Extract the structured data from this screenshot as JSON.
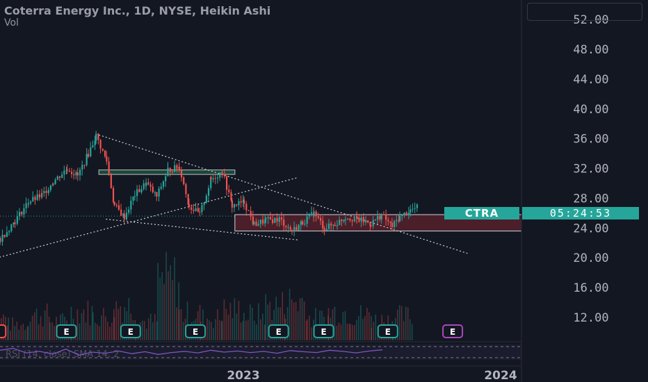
{
  "header": {
    "title": "Coterra Energy Inc., 1D, NYSE, Heikin Ashi",
    "vol_label": "Vol"
  },
  "price_tag": {
    "symbol": "CTRA",
    "countdown": "05:24:53"
  },
  "rsi_label": "RSI (14, close) SMA 14, 2",
  "colors": {
    "background": "#131722",
    "up": "#26a69a",
    "down": "#ef5350",
    "axis_text": "#b2b5be",
    "rsi_line": "#7e57c2",
    "zone_fill": "#4a1f2a"
  },
  "chart_data": {
    "type": "candlestick",
    "title": "Coterra Energy Inc., 1D, NYSE, Heikin Ashi",
    "y_axis": {
      "ticks": [
        "52.00",
        "48.00",
        "44.00",
        "40.00",
        "36.00",
        "32.00",
        "28.00",
        "24.00",
        "20.00",
        "16.00",
        "12.00"
      ],
      "range": [
        9,
        53
      ],
      "position": "right"
    },
    "x_axis": {
      "ticks": [
        "2023",
        "2024"
      ],
      "range": [
        "2022-01",
        "2024-01"
      ]
    },
    "last_price": 25.6,
    "price_path": [
      [
        "2022-01-01",
        19.6
      ],
      [
        "2022-01-20",
        22.5
      ],
      [
        "2022-02-10",
        25.0
      ],
      [
        "2022-03-01",
        27.5
      ],
      [
        "2022-03-20",
        28.4
      ],
      [
        "2022-04-05",
        30.2
      ],
      [
        "2022-04-25",
        32.0
      ],
      [
        "2022-05-10",
        31.0
      ],
      [
        "2022-05-25",
        34.0
      ],
      [
        "2022-06-05",
        36.4
      ],
      [
        "2022-06-20",
        33.0
      ],
      [
        "2022-07-01",
        27.0
      ],
      [
        "2022-07-15",
        25.5
      ],
      [
        "2022-07-30",
        28.5
      ],
      [
        "2022-08-15",
        30.0
      ],
      [
        "2022-08-30",
        28.2
      ],
      [
        "2022-09-15",
        31.8
      ],
      [
        "2022-10-01",
        32.2
      ],
      [
        "2022-10-15",
        27.0
      ],
      [
        "2022-10-30",
        25.8
      ],
      [
        "2022-11-15",
        30.5
      ],
      [
        "2022-12-01",
        31.6
      ],
      [
        "2022-12-15",
        27.0
      ],
      [
        "2023-01-01",
        27.5
      ],
      [
        "2023-01-15",
        24.5
      ],
      [
        "2023-02-01",
        25.0
      ],
      [
        "2023-02-20",
        25.2
      ],
      [
        "2023-03-10",
        23.6
      ],
      [
        "2023-03-25",
        24.8
      ],
      [
        "2023-04-10",
        26.0
      ],
      [
        "2023-04-25",
        24.0
      ],
      [
        "2023-05-10",
        24.5
      ],
      [
        "2023-05-25",
        25.5
      ],
      [
        "2023-06-10",
        25.2
      ],
      [
        "2023-06-30",
        24.6
      ],
      [
        "2023-07-15",
        25.8
      ],
      [
        "2023-07-30",
        24.2
      ],
      [
        "2023-08-10",
        25.5
      ],
      [
        "2023-08-25",
        26.4
      ],
      [
        "2023-09-05",
        26.8
      ]
    ],
    "volume": [
      [
        "2022-01-01",
        0.35
      ],
      [
        "2022-02-01",
        0.25
      ],
      [
        "2022-03-01",
        0.4
      ],
      [
        "2022-04-01",
        0.3
      ],
      [
        "2022-05-01",
        0.45
      ],
      [
        "2022-06-01",
        0.38
      ],
      [
        "2022-07-01",
        0.55
      ],
      [
        "2022-08-01",
        0.3
      ],
      [
        "2022-09-01",
        0.95
      ],
      [
        "2022-10-01",
        0.42
      ],
      [
        "2022-11-01",
        0.35
      ],
      [
        "2022-12-01",
        0.48
      ],
      [
        "2023-01-01",
        0.4
      ],
      [
        "2023-02-01",
        0.55
      ],
      [
        "2023-03-01",
        0.62
      ],
      [
        "2023-04-01",
        0.35
      ],
      [
        "2023-05-01",
        0.45
      ],
      [
        "2023-06-01",
        0.4
      ],
      [
        "2023-07-01",
        0.32
      ],
      [
        "2023-08-01",
        0.38
      ]
    ],
    "earnings_markers": [
      {
        "date": "2022-01-15",
        "label": "E",
        "color": "#ef5350"
      },
      {
        "date": "2022-04-25",
        "label": "E",
        "color": "#26a69a"
      },
      {
        "date": "2022-07-25",
        "label": "E",
        "color": "#26a69a"
      },
      {
        "date": "2022-10-25",
        "label": "E",
        "color": "#26a69a"
      },
      {
        "date": "2023-02-20",
        "label": "E",
        "color": "#26a69a"
      },
      {
        "date": "2023-04-25",
        "label": "E",
        "color": "#26a69a"
      },
      {
        "date": "2023-07-25",
        "label": "E",
        "color": "#26a69a"
      },
      {
        "date": "2023-10-25",
        "label": "E",
        "color": "#ab47bc"
      }
    ],
    "drawings": {
      "upper_resistance_box": {
        "from": "2022-06-10",
        "to": "2022-12-20",
        "top": 31.8,
        "bottom": 31.2
      },
      "support_zone": {
        "from": "2022-12-20",
        "to": "2024-01",
        "top": 25.8,
        "bottom": 23.6
      },
      "descending_trendline": [
        [
          "2022-06-10",
          36.5
        ],
        [
          "2023-11-15",
          20.6
        ]
      ],
      "ascending_trendline": [
        [
          "2022-01-01",
          19.6
        ],
        [
          "2023-03-20",
          30.8
        ]
      ],
      "lower_trendline": [
        [
          "2022-06-20",
          25.2
        ],
        [
          "2023-03-20",
          22.4
        ]
      ]
    },
    "rsi": {
      "label": "RSI (14, close) SMA 14, 2",
      "values": [
        55,
        60,
        48,
        52,
        45,
        58,
        42,
        50,
        47,
        53,
        46,
        51,
        44,
        49,
        52,
        48,
        55,
        50,
        53,
        49,
        52,
        47,
        54,
        51,
        49,
        55,
        52,
        48,
        53,
        56
      ]
    }
  }
}
